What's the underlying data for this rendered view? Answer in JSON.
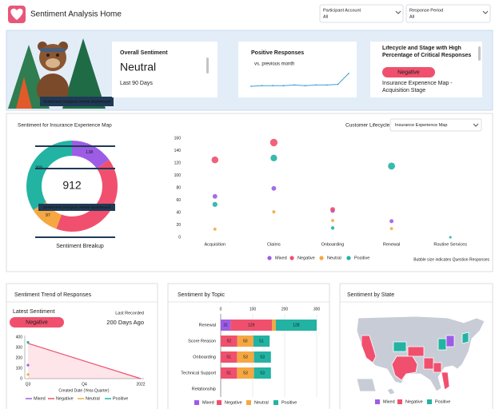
{
  "header": {
    "title": "Sentiment Analysis Home",
    "filters": [
      {
        "label": "Participant Account",
        "value": "All"
      },
      {
        "label": "Response Period",
        "value": "All"
      }
    ]
  },
  "banner": {
    "caption": "Sentiment Analysis Home dashboard"
  },
  "cards": [
    {
      "title": "Overall Sentiment",
      "value": "Neutral",
      "period": "Last 90 Days"
    },
    {
      "title": "Lifecycle and Stage with High Percentage of Critical Responses",
      "badge": "Negative",
      "detail": "Insurance Experience Map - Acquisition Stage"
    }
  ],
  "chart_data": [
    {
      "type": "line",
      "title": "Positive Responses",
      "subtitle": "vs. previous month",
      "color": "#3fa0d6",
      "values": [
        10,
        11,
        11,
        11,
        12,
        11,
        12,
        12,
        13,
        30
      ]
    },
    {
      "type": "pie",
      "title": "Sentiment for Insurance Experience Map",
      "filter": {
        "label": "Customer Lifecycle",
        "value": "Insurance Experience Map"
      },
      "total": 912,
      "caption": "Sentiment Breakup",
      "categories": [
        "Mixed",
        "Negative",
        "Neutral",
        "Positive"
      ],
      "values": [
        138,
        369,
        97,
        308
      ],
      "colors": [
        "#9d5ce6",
        "#f0506e",
        "#f5a742",
        "#22b3a3"
      ]
    },
    {
      "type": "bubble",
      "categories": [
        "Acquisition",
        "Claims",
        "Onboarding",
        "Renewal",
        "Routine Services"
      ],
      "ylim": [
        0,
        160
      ],
      "yticks": [
        0,
        20,
        40,
        60,
        80,
        100,
        120,
        140,
        160
      ],
      "note": "Bubble size indicates Question Responses",
      "series": [
        {
          "name": "Mixed",
          "color": "#9d5ce6",
          "values": [
            66,
            79,
            43,
            26,
            null
          ],
          "sizes": [
            14,
            14,
            12,
            10,
            null
          ]
        },
        {
          "name": "Negative",
          "color": "#f0506e",
          "values": [
            125,
            153,
            45,
            null,
            null
          ],
          "sizes": [
            30,
            36,
            14,
            null,
            null
          ]
        },
        {
          "name": "Neutral",
          "color": "#f5a742",
          "values": [
            13,
            41,
            27,
            14,
            null
          ],
          "sizes": [
            6,
            7,
            6,
            6,
            null
          ]
        },
        {
          "name": "Positive",
          "color": "#22b3a3",
          "values": [
            53,
            128,
            15,
            115,
            0
          ],
          "sizes": [
            16,
            28,
            8,
            32,
            4
          ]
        }
      ]
    },
    {
      "type": "line",
      "title": "Sentiment Trend of Responses",
      "latest_label": "Latest Sentiment",
      "latest": "Negative",
      "recorded_label": "Last Recorded",
      "recorded": "200 Days Ago",
      "categories": [
        "Q3",
        "Q4",
        "2022"
      ],
      "xlabel": "Created Date (Year-Quarter)",
      "ylim": [
        0,
        400
      ],
      "yticks": [
        0,
        100,
        200,
        300,
        400
      ],
      "series": [
        {
          "name": "Mixed",
          "color": "#9d5ce6",
          "values": [
            130,
            null,
            null
          ]
        },
        {
          "name": "Negative",
          "color": "#f0506e",
          "values": [
            340,
            170,
            0
          ]
        },
        {
          "name": "Neutral",
          "color": "#f5a742",
          "values": [
            40,
            null,
            null
          ]
        },
        {
          "name": "Positive",
          "color": "#22b3a3",
          "values": [
            350,
            null,
            null
          ]
        }
      ]
    },
    {
      "type": "bar",
      "orientation": "horizontal",
      "stacked": true,
      "title": "Sentiment by Topic",
      "categories": [
        "Renewal",
        "Score Reason",
        "Onboarding",
        "Technical Support",
        "Relationship"
      ],
      "xlim": [
        0,
        300
      ],
      "xticks": [
        0,
        100,
        200,
        300
      ],
      "series": [
        {
          "name": "Mixed",
          "color": "#9d5ce6",
          "values": [
            31,
            null,
            null,
            null,
            null
          ]
        },
        {
          "name": "Negative",
          "color": "#f0506e",
          "values": [
            129,
            52,
            51,
            51,
            null
          ]
        },
        {
          "name": "Neutral",
          "color": "#f5a742",
          "values": [
            12,
            50,
            53,
            53,
            null
          ]
        },
        {
          "name": "Positive",
          "color": "#22b3a3",
          "values": [
            128,
            51,
            53,
            53,
            null
          ]
        }
      ]
    },
    {
      "type": "map",
      "title": "Sentiment by State",
      "series": [
        {
          "name": "Mixed",
          "color": "#9d5ce6"
        },
        {
          "name": "Negative",
          "color": "#f0506e"
        },
        {
          "name": "Positive",
          "color": "#22b3a3"
        }
      ]
    }
  ]
}
